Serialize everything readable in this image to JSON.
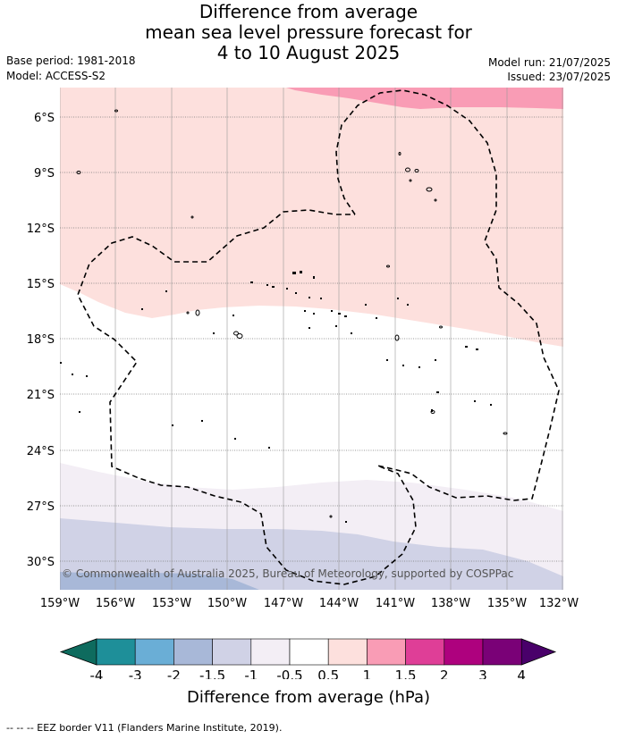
{
  "title": {
    "line1": "Difference from average",
    "line2": "mean sea level pressure forecast for",
    "line3": "4 to 10 August 2025"
  },
  "meta": {
    "base_period": "Base period: 1981-2018",
    "model": "Model: ACCESS-S2",
    "model_run": "Model run: 21/07/2025",
    "issued": "Issued: 23/07/2025"
  },
  "map": {
    "lat_labels": [
      "6°S",
      "9°S",
      "12°S",
      "15°S",
      "18°S",
      "21°S",
      "24°S",
      "27°S",
      "30°S"
    ],
    "lon_labels": [
      "159°W",
      "156°W",
      "153°W",
      "150°W",
      "147°W",
      "144°W",
      "141°W",
      "138°W",
      "135°W",
      "132°W"
    ],
    "copyright": "© Commonwealth of Australia 2025, Bureau of Meteorology, supported by COSPPac"
  },
  "colorbar": {
    "labels": [
      "-4",
      "-3",
      "-2",
      "-1.5",
      "-1",
      "-0.5",
      "0.5",
      "1",
      "1.5",
      "2",
      "3",
      "4"
    ],
    "colors": [
      "#1e8f99",
      "#6aaed6",
      "#a8b8d8",
      "#d0d2e6",
      "#f3eef5",
      "#ffffff",
      "#fde0dd",
      "#f99cb5",
      "#df3e97",
      "#ae017e",
      "#7a0177"
    ],
    "under_color": "#0e6b5e",
    "over_color": "#49006a",
    "title": "Difference from average (hPa)"
  },
  "footnote": "-- -- -- EEZ border V11 (Flanders Marine Institute, 2019)."
}
